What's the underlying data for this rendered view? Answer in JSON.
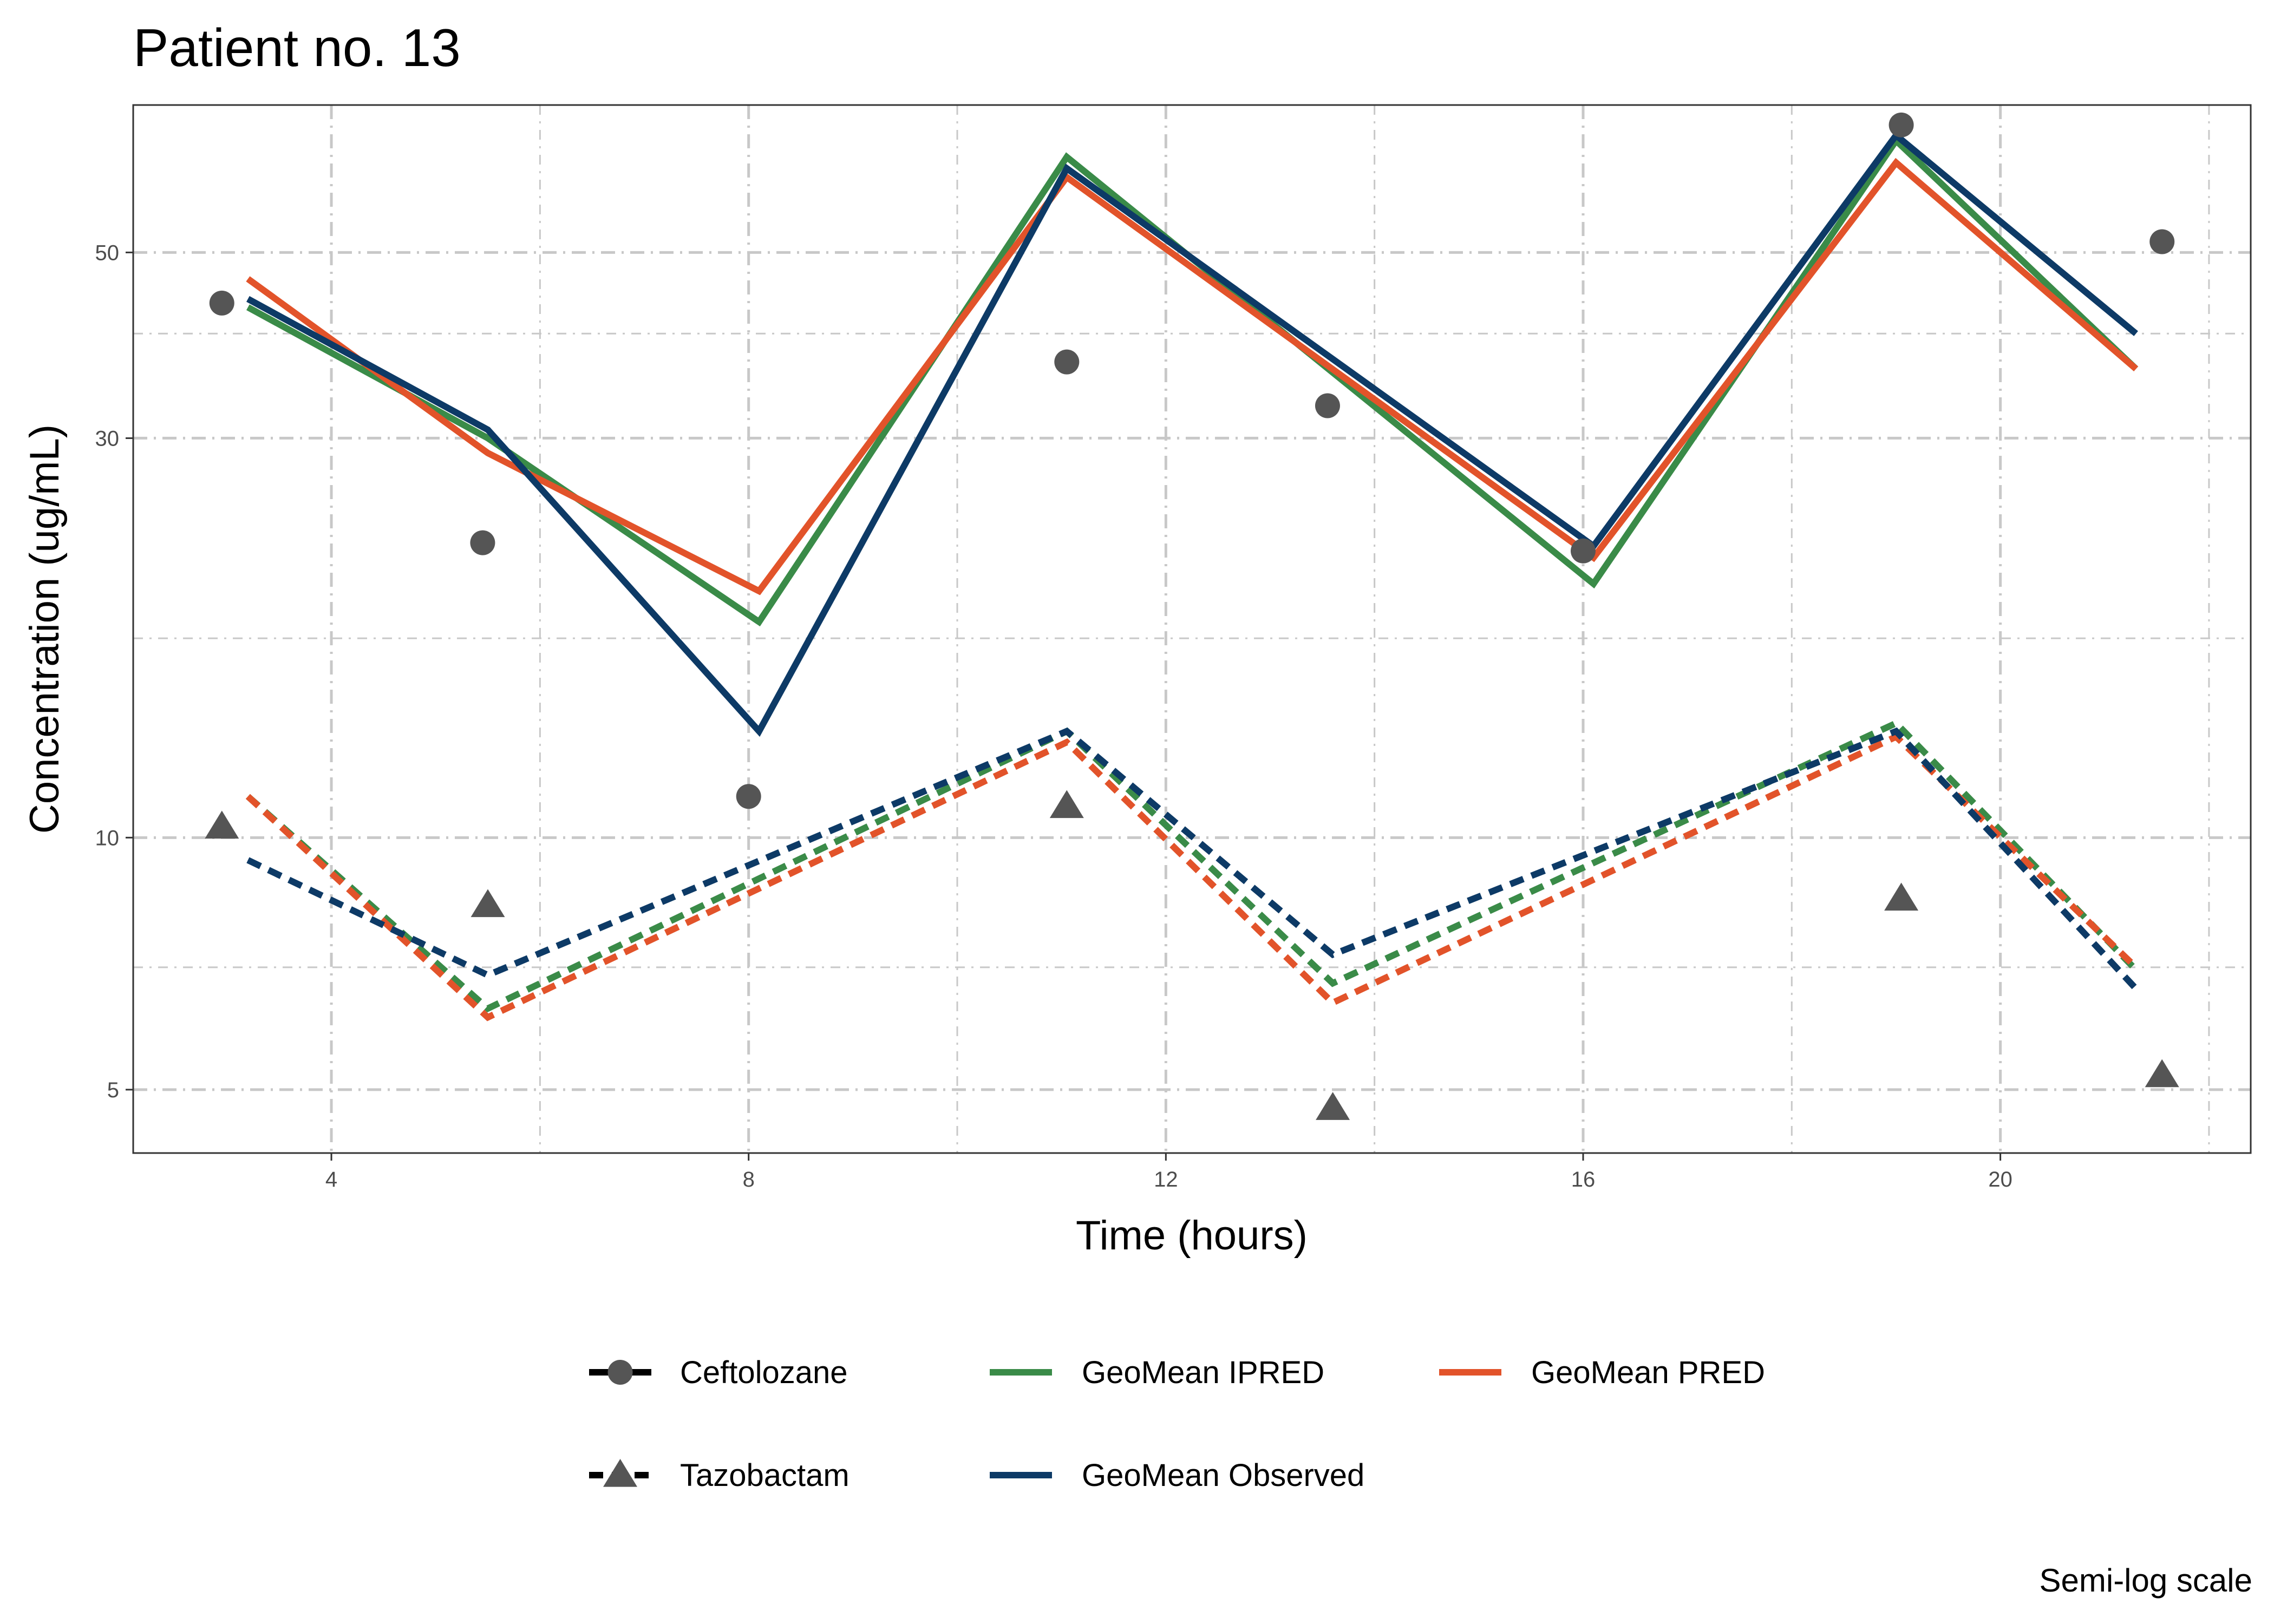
{
  "chart_data": {
    "type": "line",
    "title": "Patient no. 13",
    "xlabel": "Time (hours)",
    "ylabel": "Concentration (ug/mL)",
    "caption": "Semi-log scale",
    "x_scale": "linear",
    "y_scale": "log",
    "xlim": [
      2.1,
      22.4
    ],
    "ylim": [
      4.2,
      75
    ],
    "x_ticks": [
      {
        "value": 4,
        "label": "4"
      },
      {
        "value": 8,
        "label": "8"
      },
      {
        "value": 12,
        "label": "12"
      },
      {
        "value": 16,
        "label": "16"
      },
      {
        "value": 20,
        "label": "20"
      }
    ],
    "y_ticks": [
      {
        "value": 5,
        "label": "5"
      },
      {
        "value": 10,
        "label": "10"
      },
      {
        "value": 30,
        "label": "30"
      },
      {
        "value": 50,
        "label": "50"
      }
    ],
    "x_minor_grid": [
      6,
      10,
      14,
      18,
      22
    ],
    "y_minor_grid": [
      7,
      17.3,
      40
    ],
    "grid": true,
    "legend_position": "bottom",
    "colors": {
      "ipred": "#3a8b48",
      "pred": "#e2532a",
      "observed": "#0d3a66",
      "points": "#555555",
      "grid": "#c8c8c8",
      "panel_border": "#333333"
    },
    "series": [
      {
        "name": "GeoMean IPRED",
        "drug": "Ceftolozane",
        "line": "solid",
        "color_key": "ipred",
        "x": [
          3.2,
          5.5,
          8.1,
          11.05,
          16.1,
          19.0,
          21.3
        ],
        "y": [
          43.0,
          30.0,
          18.1,
          65.0,
          20.1,
          68.0,
          36.3
        ]
      },
      {
        "name": "GeoMean PRED",
        "drug": "Ceftolozane",
        "line": "solid",
        "color_key": "pred",
        "x": [
          3.2,
          5.5,
          8.1,
          11.05,
          16.1,
          19.0,
          21.3
        ],
        "y": [
          46.5,
          28.8,
          19.7,
          61.5,
          21.6,
          64.0,
          36.3
        ]
      },
      {
        "name": "GeoMean Observed",
        "drug": "Ceftolozane",
        "line": "solid",
        "color_key": "observed",
        "x": [
          3.2,
          5.5,
          8.1,
          11.05,
          16.1,
          19.0,
          21.3
        ],
        "y": [
          44.0,
          30.7,
          13.4,
          63.0,
          22.3,
          69.0,
          40.0
        ]
      },
      {
        "name": "GeoMean IPRED",
        "drug": "Tazobactam",
        "line": "dashed",
        "color_key": "ipred",
        "x": [
          3.2,
          5.5,
          11.05,
          13.6,
          19.0,
          21.3
        ],
        "y": [
          11.2,
          6.25,
          13.4,
          6.7,
          13.7,
          6.95
        ]
      },
      {
        "name": "GeoMean PRED",
        "drug": "Tazobactam",
        "line": "dashed",
        "color_key": "pred",
        "x": [
          3.2,
          5.5,
          11.05,
          13.6,
          19.0,
          21.3
        ],
        "y": [
          11.2,
          6.1,
          13.0,
          6.35,
          13.2,
          7.0
        ]
      },
      {
        "name": "GeoMean Observed",
        "drug": "Tazobactam",
        "line": "dashed",
        "color_key": "observed",
        "x": [
          3.2,
          5.5,
          11.05,
          13.6,
          19.0,
          21.3
        ],
        "y": [
          9.4,
          6.85,
          13.4,
          7.25,
          13.4,
          6.6
        ]
      }
    ],
    "observations": [
      {
        "drug": "Ceftolozane",
        "shape": "circle",
        "x": [
          2.95,
          5.45,
          8.0,
          11.05,
          13.55,
          16.0,
          19.05,
          21.55
        ],
        "y": [
          43.5,
          22.5,
          11.2,
          37.0,
          32.8,
          22.0,
          71.0,
          51.5
        ]
      },
      {
        "drug": "Tazobactam",
        "shape": "triangle",
        "x": [
          2.95,
          5.5,
          11.05,
          13.6,
          19.05,
          21.55
        ],
        "y": [
          10.3,
          8.3,
          10.9,
          4.75,
          8.45,
          5.2
        ]
      }
    ],
    "legend": {
      "shapes": [
        {
          "label": "Ceftolozane",
          "line": "solid",
          "shape": "circle"
        },
        {
          "label": "Tazobactam",
          "line": "dashed",
          "shape": "triangle"
        }
      ],
      "colors": [
        {
          "label": "GeoMean IPRED",
          "color_key": "ipred"
        },
        {
          "label": "GeoMean PRED",
          "color_key": "pred"
        },
        {
          "label": "GeoMean Observed",
          "color_key": "observed"
        }
      ]
    }
  }
}
